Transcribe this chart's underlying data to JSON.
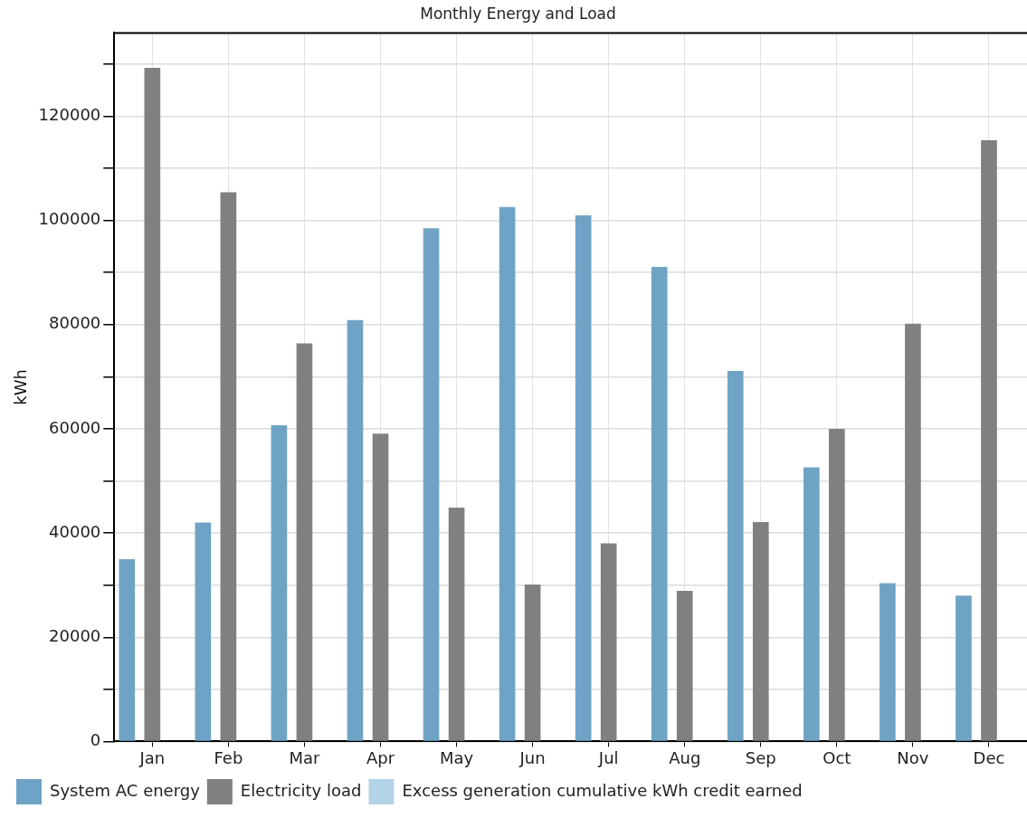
{
  "chart_data": {
    "type": "bar",
    "title": "Monthly Energy and Load",
    "ylabel": "kWh",
    "categories": [
      "Jan",
      "Feb",
      "Mar",
      "Apr",
      "May",
      "Jun",
      "Jul",
      "Aug",
      "Sep",
      "Oct",
      "Nov",
      "Dec"
    ],
    "series": [
      {
        "name": "System AC energy",
        "color": "#6fa3c5",
        "values": [
          35000,
          42000,
          60700,
          80900,
          98500,
          102600,
          101000,
          91100,
          71100,
          52600,
          30400,
          28000
        ]
      },
      {
        "name": "Electricity load",
        "color": "#808080",
        "values": [
          129300,
          105400,
          76400,
          59100,
          44900,
          30100,
          38000,
          28900,
          42100,
          60000,
          80200,
          115400
        ]
      },
      {
        "name": "Excess generation cumulative kWh credit earned",
        "color": "#b3d3e6",
        "values": [
          0,
          0,
          0,
          0,
          0,
          0,
          0,
          0,
          0,
          0,
          0,
          0
        ]
      }
    ],
    "ylim": [
      0,
      136000
    ],
    "yticks": [
      0,
      {
        "value": 10000,
        "label": null
      },
      20000,
      {
        "value": 30000,
        "label": null
      },
      40000,
      {
        "value": 50000,
        "label": null
      },
      60000,
      {
        "value": 70000,
        "label": null
      },
      80000,
      {
        "value": 90000,
        "label": null
      },
      100000,
      {
        "value": 110000,
        "label": null
      },
      120000,
      {
        "value": 130000,
        "label": null
      }
    ],
    "grid": true,
    "legend": "bottom left"
  }
}
